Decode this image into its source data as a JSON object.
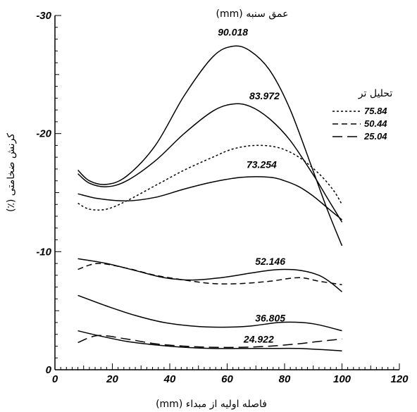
{
  "chart_data": {
    "type": "line",
    "xlabel": "فاصله اولیه از مبداء (mm)",
    "ylabel": "کرنش ضخامتی (٪)",
    "xlim": [
      0,
      120
    ],
    "ylim": [
      0,
      -30
    ],
    "x_ticks": [
      "0",
      "20",
      "40",
      "60",
      "80",
      "100",
      "120"
    ],
    "y_ticks": [
      "0",
      "-10",
      "-20",
      "-30"
    ],
    "grid": false,
    "curve_group_title": "عمق سنبه (mm)",
    "legend": {
      "title": "تحلیل تر",
      "placement": "right",
      "entries": [
        {
          "label": "75.84",
          "style": "dotted"
        },
        {
          "label": "50.44",
          "style": "dashed"
        },
        {
          "label": "25.04",
          "style": "long-dashed"
        }
      ]
    },
    "series": [
      {
        "label": "90.018",
        "style": "solid",
        "label_at": [
          62,
          -28.3
        ],
        "x": [
          8,
          12,
          18,
          25,
          35,
          45,
          55,
          62,
          68,
          75,
          82,
          90,
          95,
          100
        ],
        "y": [
          -16.9,
          -16.0,
          -15.7,
          -16.4,
          -19.0,
          -23.2,
          -26.5,
          -27.4,
          -27.0,
          -25.3,
          -22.0,
          -16.8,
          -13.5,
          -10.5
        ]
      },
      {
        "label": "83.972",
        "style": "solid",
        "label_at": [
          73,
          -22.9
        ],
        "x": [
          8,
          12,
          18,
          25,
          35,
          45,
          55,
          62,
          68,
          75,
          82,
          90,
          95,
          100
        ],
        "y": [
          -16.6,
          -15.8,
          -15.5,
          -16.0,
          -17.7,
          -20.0,
          -21.9,
          -22.5,
          -22.3,
          -21.2,
          -19.4,
          -16.5,
          -14.5,
          -12.5
        ]
      },
      {
        "label": "75.84",
        "style": "dotted",
        "x": [
          8,
          12,
          18,
          25,
          35,
          45,
          55,
          62,
          70,
          78,
          85,
          92,
          97,
          100
        ],
        "y": [
          -14.1,
          -13.6,
          -13.6,
          -14.3,
          -15.6,
          -16.9,
          -18.0,
          -18.7,
          -19.0,
          -18.8,
          -18.0,
          -16.6,
          -15.2,
          -14.0
        ]
      },
      {
        "label": "73.254",
        "style": "solid",
        "label_at": [
          72,
          -17.1
        ],
        "x": [
          8,
          15,
          25,
          35,
          45,
          55,
          65,
          75,
          80,
          85,
          90,
          95,
          100
        ],
        "y": [
          -14.9,
          -14.5,
          -14.3,
          -14.6,
          -15.3,
          -15.9,
          -16.3,
          -16.3,
          -16.0,
          -15.5,
          -14.7,
          -13.7,
          -12.7
        ]
      },
      {
        "label": "52.146",
        "style": "solid",
        "label_at": [
          75,
          -8.9
        ],
        "x": [
          8,
          18,
          28,
          38,
          48,
          58,
          66,
          74,
          80,
          86,
          92,
          96,
          100
        ],
        "y": [
          -9.4,
          -9.0,
          -8.4,
          -7.8,
          -7.6,
          -7.8,
          -8.1,
          -8.4,
          -8.5,
          -8.4,
          -8.0,
          -7.4,
          -6.6
        ]
      },
      {
        "label": "50.44",
        "style": "dashed",
        "x": [
          8,
          15,
          25,
          35,
          45,
          55,
          65,
          75,
          85,
          92,
          100
        ],
        "y": [
          -8.5,
          -9.0,
          -8.6,
          -8.0,
          -7.6,
          -7.3,
          -7.3,
          -7.5,
          -7.8,
          -7.5,
          -7.2
        ]
      },
      {
        "label": "36.805",
        "style": "solid",
        "label_at": [
          75,
          -4.1
        ],
        "x": [
          8,
          18,
          28,
          38,
          48,
          58,
          68,
          78,
          86,
          92,
          100
        ],
        "y": [
          -6.3,
          -5.4,
          -4.6,
          -4.0,
          -3.7,
          -3.6,
          -3.7,
          -4.0,
          -4.0,
          -3.8,
          -3.3
        ]
      },
      {
        "label": "24.922",
        "style": "solid",
        "label_at": [
          71,
          -2.3
        ],
        "x": [
          8,
          15,
          25,
          35,
          45,
          55,
          65,
          75,
          85,
          100
        ],
        "y": [
          -3.3,
          -2.9,
          -2.4,
          -2.1,
          -1.9,
          -1.8,
          -1.8,
          -1.8,
          -1.8,
          -1.6
        ]
      },
      {
        "label": "25.04",
        "style": "long-dashed",
        "x": [
          8,
          15,
          25,
          35,
          45,
          55,
          65,
          75,
          85,
          92,
          100
        ],
        "y": [
          -2.3,
          -2.9,
          -2.6,
          -2.2,
          -2.0,
          -1.9,
          -1.9,
          -2.0,
          -2.2,
          -2.4,
          -2.6
        ]
      }
    ]
  }
}
